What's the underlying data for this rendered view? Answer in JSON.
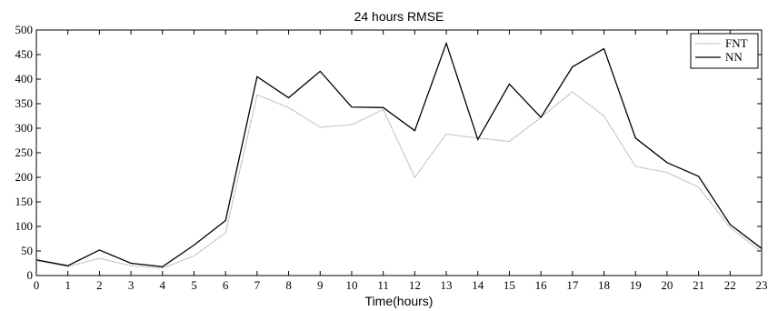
{
  "chart_data": {
    "type": "line",
    "title": "24 hours RMSE",
    "xlabel": "Time(hours)",
    "ylabel": "",
    "x": [
      0,
      1,
      2,
      3,
      4,
      5,
      6,
      7,
      8,
      9,
      10,
      11,
      12,
      13,
      14,
      15,
      16,
      17,
      18,
      19,
      20,
      21,
      22,
      23
    ],
    "xlim": [
      0,
      23
    ],
    "ylim": [
      0,
      500
    ],
    "xticks": [
      0,
      1,
      2,
      3,
      4,
      5,
      6,
      7,
      8,
      9,
      10,
      11,
      12,
      13,
      14,
      15,
      16,
      17,
      18,
      19,
      20,
      21,
      22,
      23
    ],
    "yticks": [
      0,
      50,
      100,
      150,
      200,
      250,
      300,
      350,
      400,
      450,
      500
    ],
    "grid": false,
    "legend": "top-right",
    "series": [
      {
        "name": "FNT",
        "color": "#a8a8a8",
        "style": "dotted",
        "values": [
          30,
          18,
          35,
          20,
          15,
          40,
          87,
          368,
          342,
          302,
          307,
          338,
          200,
          288,
          280,
          273,
          322,
          374,
          325,
          222,
          210,
          180,
          98,
          48
        ]
      },
      {
        "name": "NN",
        "color": "#000000",
        "style": "solid",
        "values": [
          32,
          20,
          52,
          25,
          18,
          62,
          112,
          405,
          362,
          416,
          343,
          342,
          295,
          473,
          277,
          390,
          322,
          425,
          462,
          280,
          230,
          202,
          104,
          55
        ]
      }
    ]
  }
}
